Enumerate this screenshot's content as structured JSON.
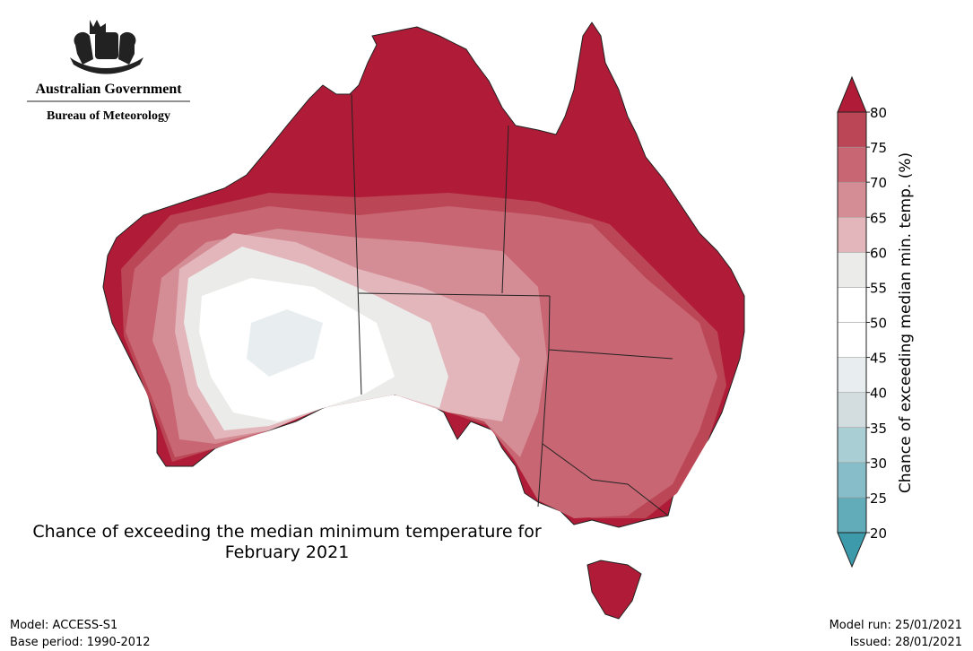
{
  "logo": {
    "line1": "Australian Government",
    "line2": "Bureau of Meteorology"
  },
  "title": [
    "Chance of exceeding the median minimum temperature for",
    "February 2021"
  ],
  "colorbar": {
    "label": "Chance of exceeding median min. temp. (%)",
    "ticks": [
      20,
      25,
      30,
      35,
      40,
      45,
      50,
      55,
      60,
      65,
      70,
      75,
      80
    ],
    "colors": [
      "#62abb8",
      "#86bdc8",
      "#a9cfd4",
      "#d3dcdf",
      "#e8eef0",
      "#ffffff",
      "#ffffff",
      "#ebebea",
      "#e2b6bb",
      "#d48c95",
      "#c86673",
      "#bb4655"
    ],
    "under_color": "#3c9aab",
    "over_color": "#b01c37"
  },
  "footer": {
    "model": "Model: ACCESS-S1",
    "base_period": "Base period: 1990-2012",
    "model_run": "Model run: 25/01/2021",
    "issued": "Issued: 28/01/2021"
  }
}
